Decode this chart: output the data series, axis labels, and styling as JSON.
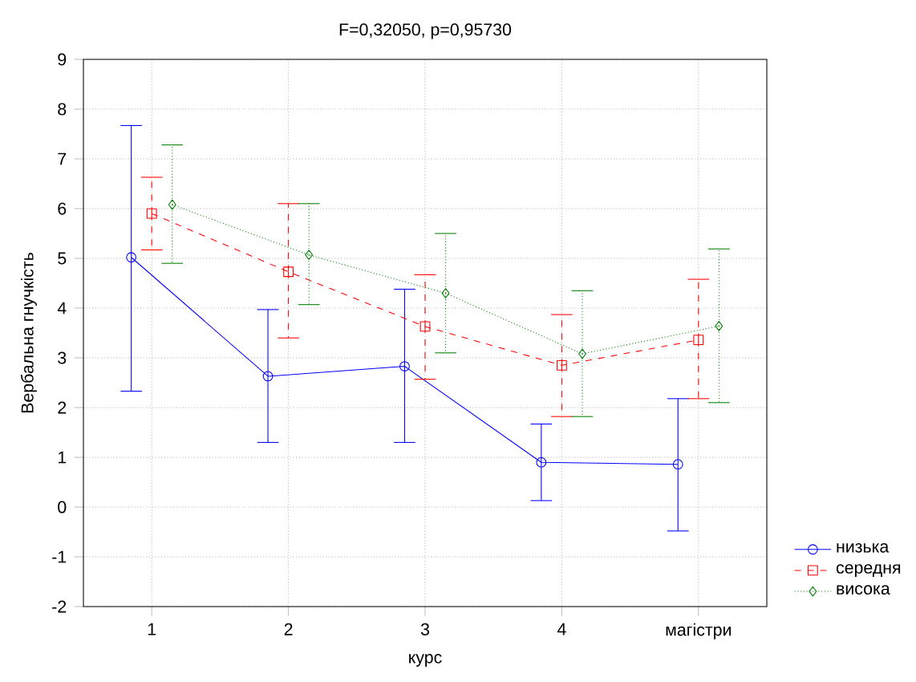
{
  "chart_data": {
    "type": "line",
    "title": "F=0,32050, p=0,95730",
    "xlabel": "курс",
    "ylabel": "Вербальна гнучкість",
    "categories": [
      "1",
      "2",
      "3",
      "4",
      "магістри"
    ],
    "series": [
      {
        "name": "низька",
        "color": "#0000ff",
        "marker": "circle",
        "line_style": "solid",
        "values": [
          5.02,
          2.63,
          2.83,
          0.9,
          0.86
        ],
        "errors": [
          [
            2.33,
            7.67
          ],
          [
            1.3,
            3.97
          ],
          [
            1.3,
            4.38
          ],
          [
            0.13,
            1.67
          ],
          [
            -0.48,
            2.18
          ]
        ]
      },
      {
        "name": "середня",
        "color": "#ff0000",
        "marker": "square",
        "line_style": "dashed",
        "values": [
          5.9,
          4.73,
          3.63,
          2.85,
          3.36
        ],
        "errors": [
          [
            5.17,
            6.63
          ],
          [
            3.4,
            6.1
          ],
          [
            2.57,
            4.67
          ],
          [
            1.82,
            3.87
          ],
          [
            2.18,
            4.58
          ]
        ]
      },
      {
        "name": "висока",
        "color": "#008000",
        "marker": "diamond",
        "line_style": "dotted",
        "values": [
          6.08,
          5.07,
          4.3,
          3.08,
          3.64
        ],
        "errors": [
          [
            4.9,
            7.28
          ],
          [
            4.07,
            6.1
          ],
          [
            3.1,
            5.5
          ],
          [
            1.82,
            4.35
          ],
          [
            2.1,
            5.19
          ]
        ]
      }
    ],
    "ylim": [
      -2,
      9
    ],
    "yticks": [
      -2,
      -1,
      0,
      1,
      2,
      3,
      4,
      5,
      6,
      7,
      8,
      9
    ],
    "grid": true,
    "legend": "bottom right"
  }
}
